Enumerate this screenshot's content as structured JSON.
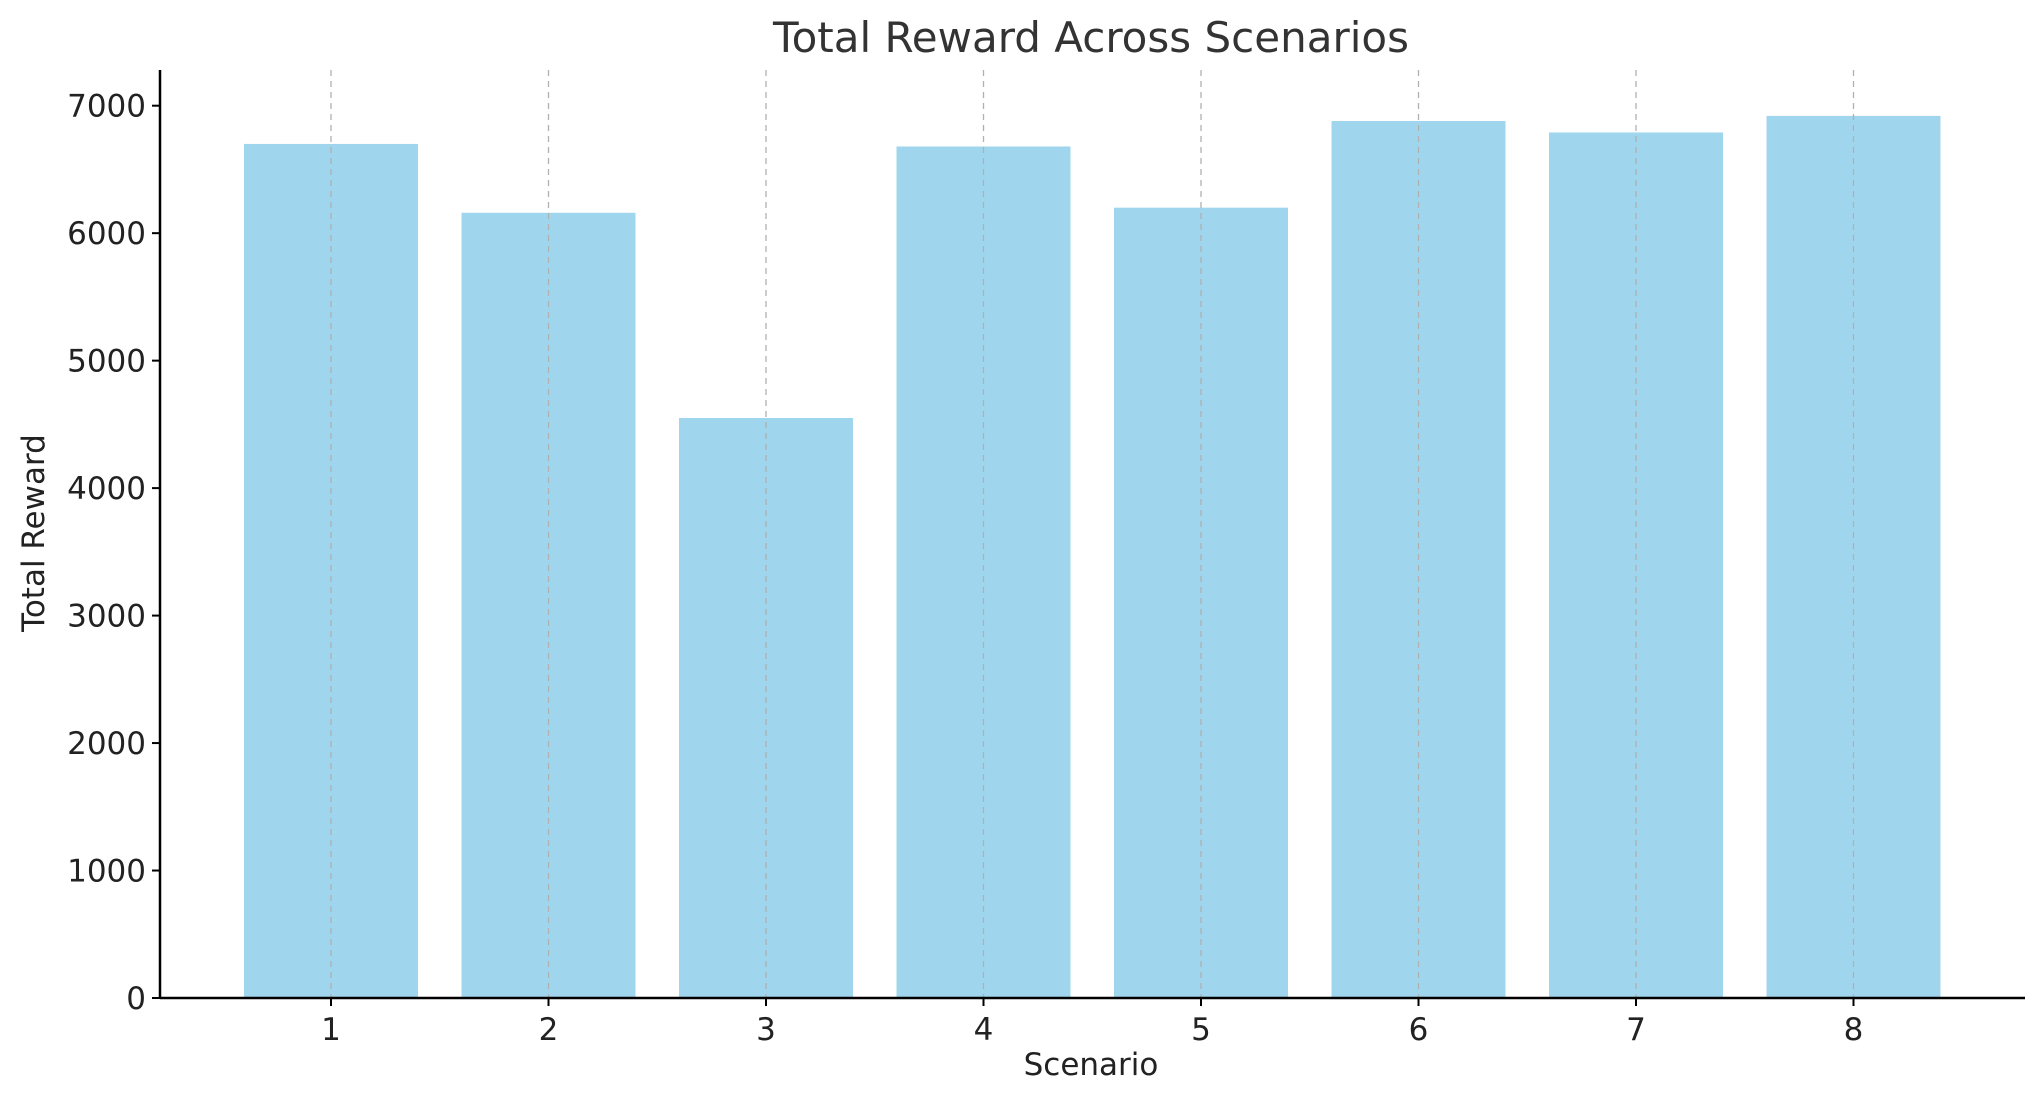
{
  "chart_data": {
    "type": "bar",
    "title": "Total Reward Across Scenarios",
    "xlabel": "Scenario",
    "ylabel": "Total Reward",
    "categories": [
      "1",
      "2",
      "3",
      "4",
      "5",
      "6",
      "7",
      "8"
    ],
    "values": [
      6700,
      6160,
      4550,
      6680,
      6200,
      6880,
      6790,
      6920
    ],
    "ylim": [
      0,
      7280
    ],
    "yticks": [
      0,
      1000,
      2000,
      3000,
      4000,
      5000,
      6000,
      7000
    ],
    "ytick_labels": [
      "0",
      "1000",
      "2000",
      "3000",
      "4000",
      "5000",
      "6000",
      "7000"
    ],
    "grid": "x-dashed",
    "legend": "none",
    "bar_color": "#a0d6ed"
  }
}
